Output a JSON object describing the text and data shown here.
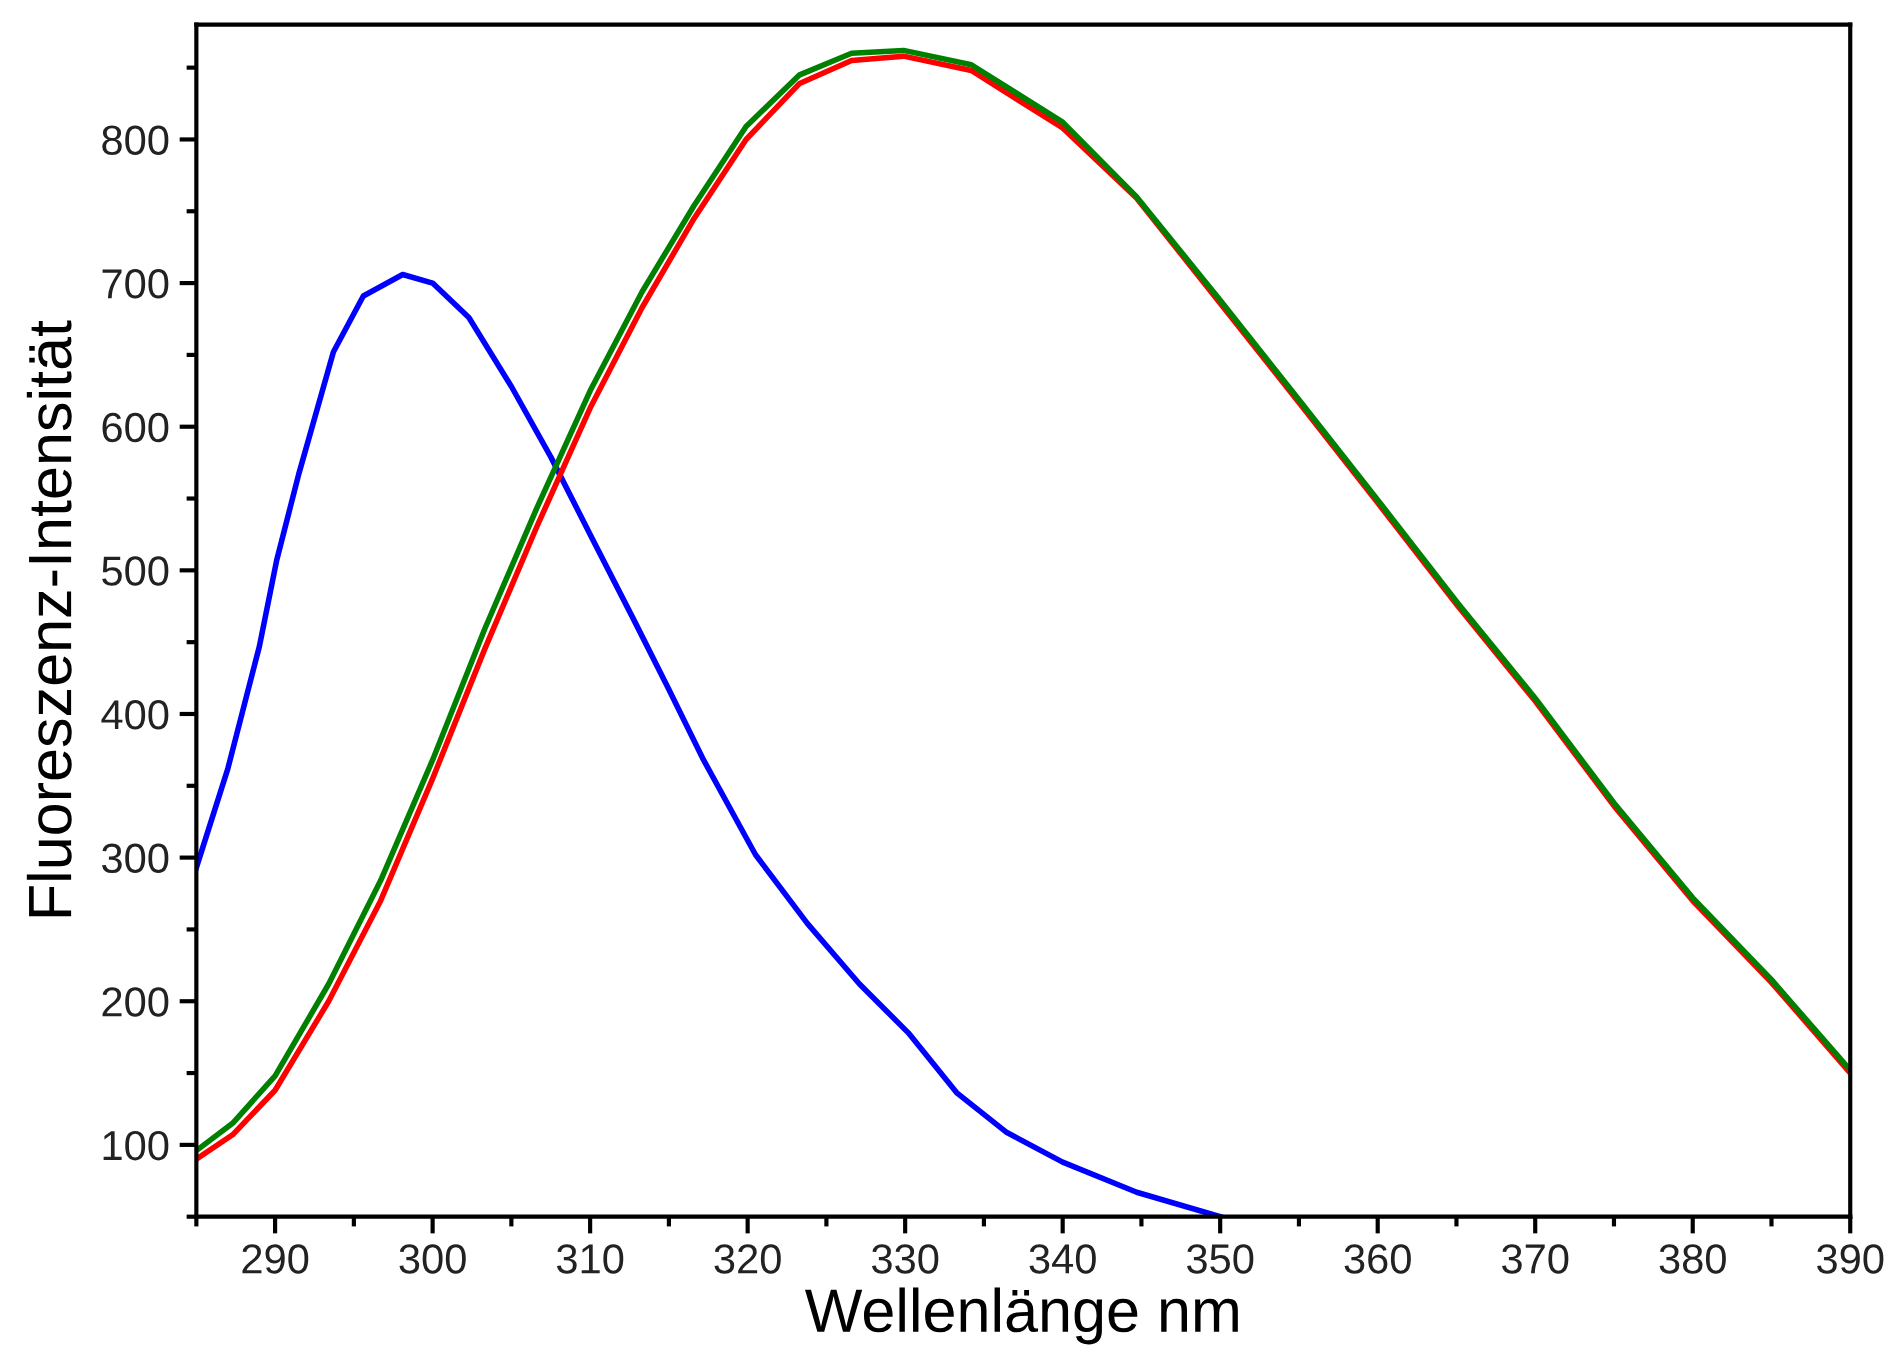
{
  "chart_data": {
    "type": "line",
    "xlabel": "Wellenlänge nm",
    "ylabel": "Fluoreszenz-Intensität",
    "xlim": [
      285,
      390
    ],
    "ylim": [
      50,
      880
    ],
    "xticks": [
      {
        "value": 285,
        "label": null
      },
      290,
      {
        "value": 295,
        "label": null
      },
      300,
      {
        "value": 305,
        "label": null
      },
      310,
      {
        "value": 315,
        "label": null
      },
      320,
      {
        "value": 325,
        "label": null
      },
      330,
      {
        "value": 335,
        "label": null
      },
      340,
      {
        "value": 345,
        "label": null
      },
      350,
      {
        "value": 355,
        "label": null
      },
      360,
      {
        "value": 365,
        "label": null
      },
      370,
      {
        "value": 375,
        "label": null
      },
      380,
      {
        "value": 385,
        "label": null
      },
      390
    ],
    "yticks": [
      {
        "value": 50,
        "label": null
      },
      100,
      {
        "value": 150,
        "label": null
      },
      200,
      {
        "value": 250,
        "label": null
      },
      300,
      {
        "value": 350,
        "label": null
      },
      400,
      {
        "value": 450,
        "label": null
      },
      500,
      {
        "value": 550,
        "label": null
      },
      600,
      {
        "value": 650,
        "label": null
      },
      700,
      {
        "value": 750,
        "label": null
      },
      800,
      {
        "value": 850,
        "label": null
      }
    ],
    "grid": false,
    "marker": "none",
    "line_style": "solid",
    "series": [
      {
        "color": "#0000ff",
        "x": [
          285,
          287,
          289,
          290.1,
          291.5,
          293.7,
          295.6,
          298.1,
          300,
          302.3,
          305,
          307.5,
          310,
          312.8,
          315,
          317.2,
          320.5,
          323.8,
          327.1,
          330.2,
          333.3,
          336.4,
          340,
          344.7,
          350
        ],
        "values": [
          293,
          362,
          447,
          507,
          567,
          652,
          691,
          706,
          700,
          676,
          628,
          579,
          525,
          465,
          417,
          368,
          302,
          254,
          212,
          178,
          136,
          109,
          88,
          67,
          50
        ]
      },
      {
        "color": "#ff0000",
        "x": [
          285,
          287.3,
          290,
          293.4,
          296.7,
          300,
          303.3,
          306.6,
          310,
          313.3,
          316.6,
          319.9,
          323.3,
          326.6,
          329.9,
          334.2,
          340,
          344.7,
          350,
          355.2,
          360,
          365.1,
          370,
          375,
          380,
          385,
          390
        ],
        "values": [
          90,
          107,
          138,
          200,
          270,
          355,
          445,
          530,
          613,
          683,
          745,
          800,
          839,
          855,
          858,
          848,
          808,
          759,
          686,
          614,
          547,
          475,
          409,
          336,
          270,
          213,
          150
        ]
      },
      {
        "color": "#008000",
        "x": [
          285,
          287.3,
          290,
          293.4,
          296.7,
          300,
          303.3,
          306.6,
          310,
          313.3,
          316.6,
          319.9,
          323.3,
          326.6,
          329.9,
          334.2,
          340,
          344.7,
          350,
          355.2,
          360,
          365.1,
          370,
          375,
          380,
          385,
          390
        ],
        "values": [
          96,
          115,
          148,
          212,
          284,
          368,
          459,
          543,
          625,
          694,
          754,
          809,
          845,
          860,
          862,
          852,
          812,
          760,
          688,
          616,
          549,
          477,
          411,
          338,
          272,
          215,
          152
        ]
      }
    ]
  }
}
